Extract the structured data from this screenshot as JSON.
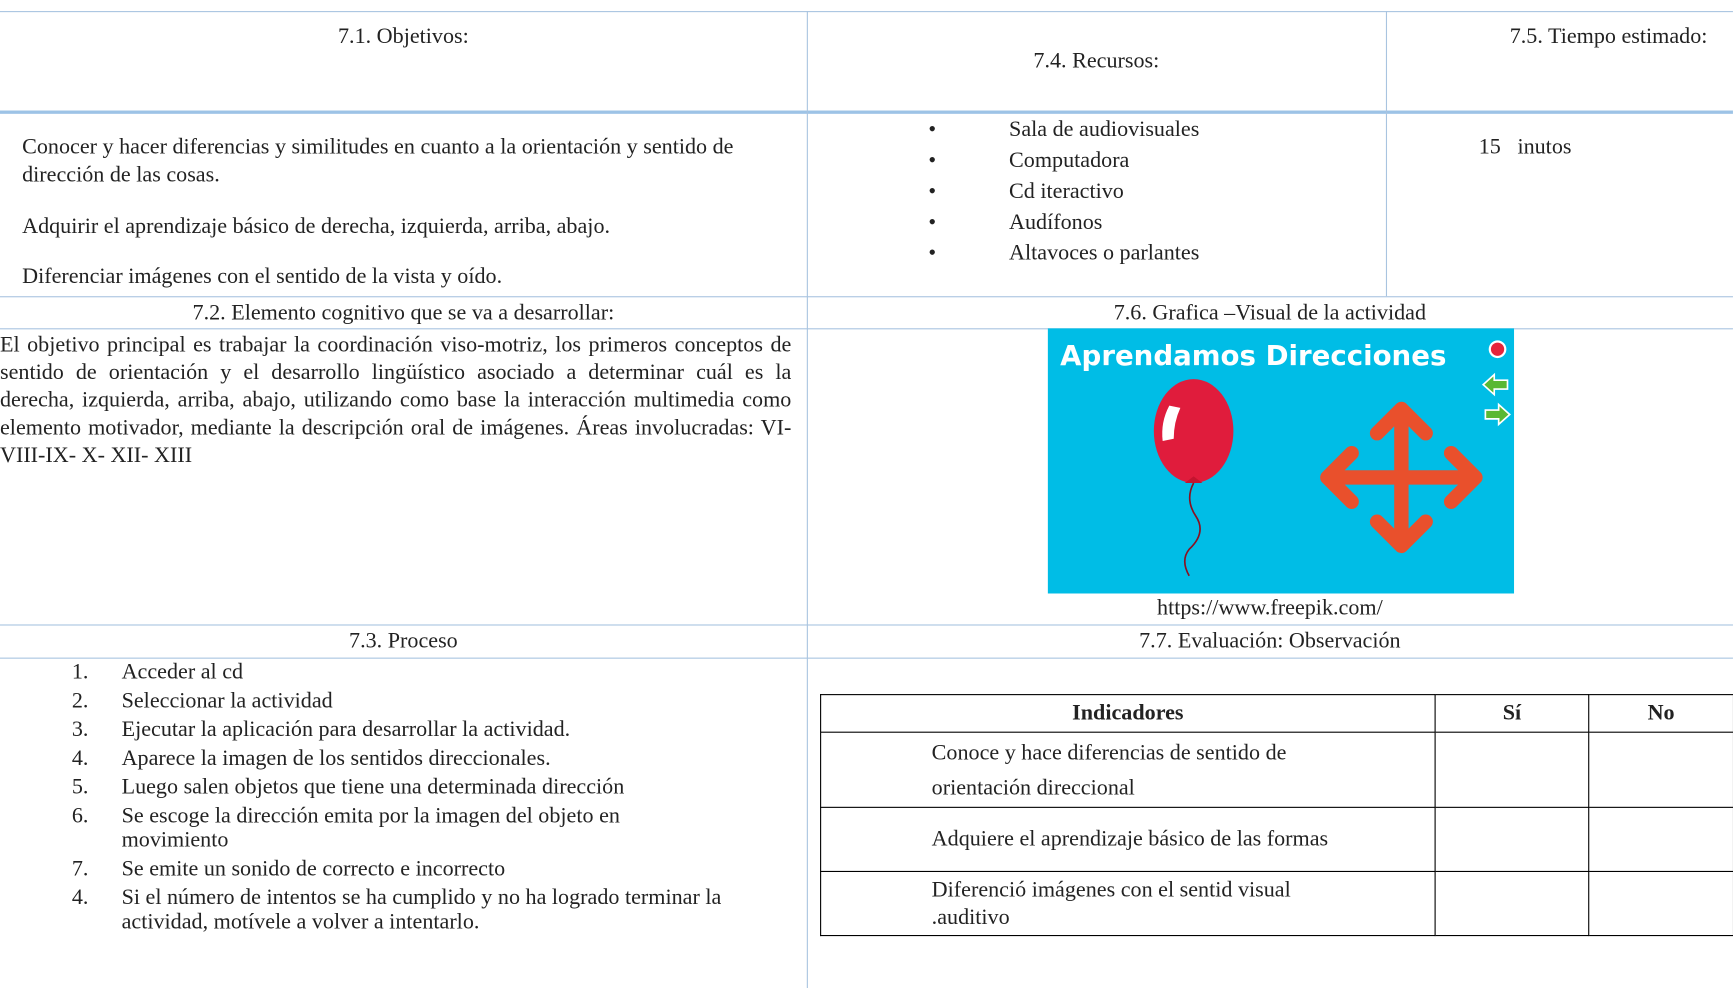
{
  "objectives": {
    "heading": "7.1. Objetivos:",
    "items": [
      "Conocer y hacer diferencias y similitudes en cuanto a la orientación y sentido de dirección de las cosas.",
      "Adquirir el aprendizaje básico de derecha, izquierda, arriba, abajo.",
      "Diferenciar imágenes con el sentido de la vista y oído."
    ]
  },
  "resources": {
    "heading": "7.4. Recursos:",
    "items": [
      "Sala de audiovisuales",
      "Computadora",
      "Cd iteractivo",
      "Audífonos",
      "Altavoces o parlantes"
    ]
  },
  "time": {
    "heading": "7.5. Tiempo estimado:",
    "value": "15   inutos"
  },
  "cognitive": {
    "heading": "7.2. Elemento cognitivo que se va a desarrollar:",
    "text": "El objetivo principal es trabajar la coordinación viso-motriz, los primeros conceptos de sentido de orientación y el desarrollo lingüístico asociado a determinar cuál es la derecha, izquierda, arriba, abajo, utilizando como base la interacción multimedia como elemento motivador, mediante la descripción oral de imágenes. Áreas involucradas: VI-VIII-IX- X- XII- XIII"
  },
  "graphic": {
    "heading": "7.6.  Grafica –Visual de la actividad",
    "title": "Aprendamos Direcciones",
    "source": "https://www.freepik.com/"
  },
  "process": {
    "heading": "7.3. Proceso",
    "steps": [
      {
        "number": "1.",
        "text": "Acceder al cd"
      },
      {
        "number": "2.",
        "text": "Seleccionar la actividad"
      },
      {
        "number": "3.",
        "text": "Ejecutar la aplicación para desarrollar la actividad."
      },
      {
        "number": "4.",
        "text": "Aparece la imagen de los sentidos direccionales."
      },
      {
        "number": "5.",
        "text": "Luego salen objetos que tiene una determinada dirección"
      },
      {
        "number": "6.",
        "text": "Se escoge la dirección emita por la imagen del objeto en movimiento"
      },
      {
        "number": "7.",
        "text": "Se emite un sonido de correcto e incorrecto"
      },
      {
        "number": "4.",
        "text": "Si el número de intentos se ha cumplido y no ha logrado terminar la actividad, motívele a volver a intentarlo."
      }
    ]
  },
  "evaluation": {
    "heading": "7.7.  Evaluación: Observación",
    "columns": [
      "Indicadores",
      "Sí",
      "No"
    ],
    "rows": [
      "Conoce y hace diferencias de sentido de orientación direccional",
      "Adquiere el aprendizaje básico de las formas",
      "Diferenció imágenes con el sentid visual .auditivo"
    ]
  }
}
